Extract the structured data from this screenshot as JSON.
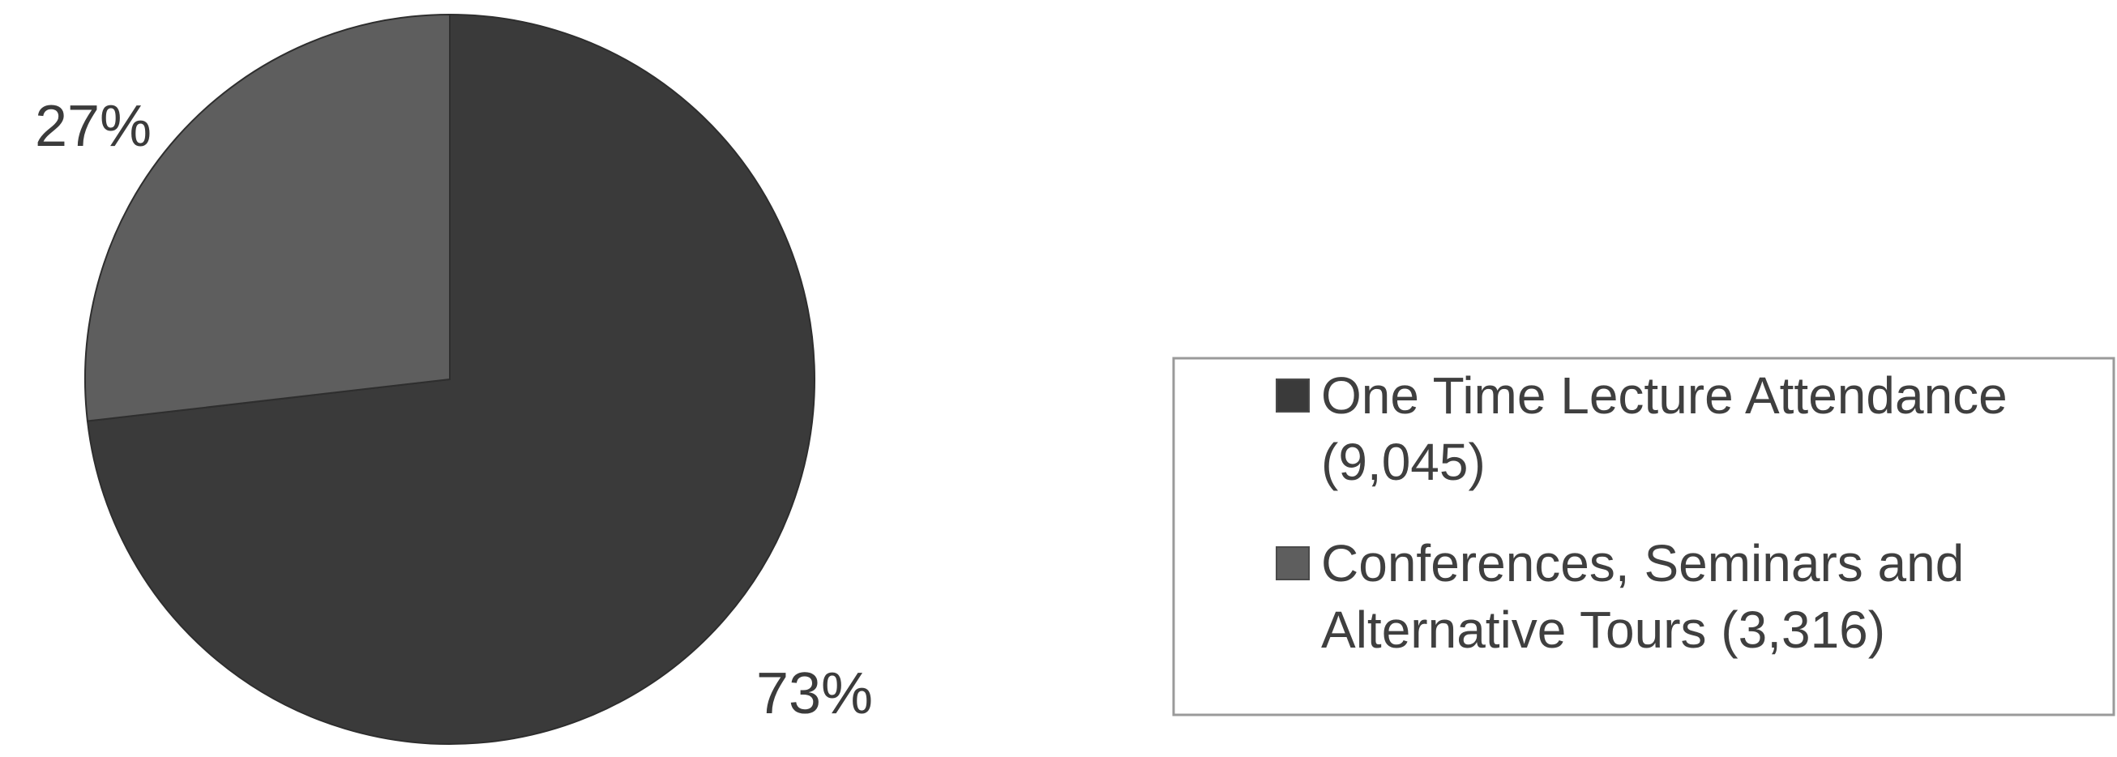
{
  "chart_data": {
    "type": "pie",
    "slices": [
      {
        "label_lines": [
          "One Time Lecture Attendance",
          "(9,045)"
        ],
        "value": 9045,
        "percent_label": "73%",
        "color": "#3a3a3a"
      },
      {
        "label_lines": [
          "Conferences, Seminars and",
          "Alternative Tours (3,316)"
        ],
        "value": 3316,
        "percent_label": "27%",
        "color": "#5e5e5e"
      }
    ],
    "legend_position": "right",
    "legend_border_color": "#9a9a9a"
  }
}
